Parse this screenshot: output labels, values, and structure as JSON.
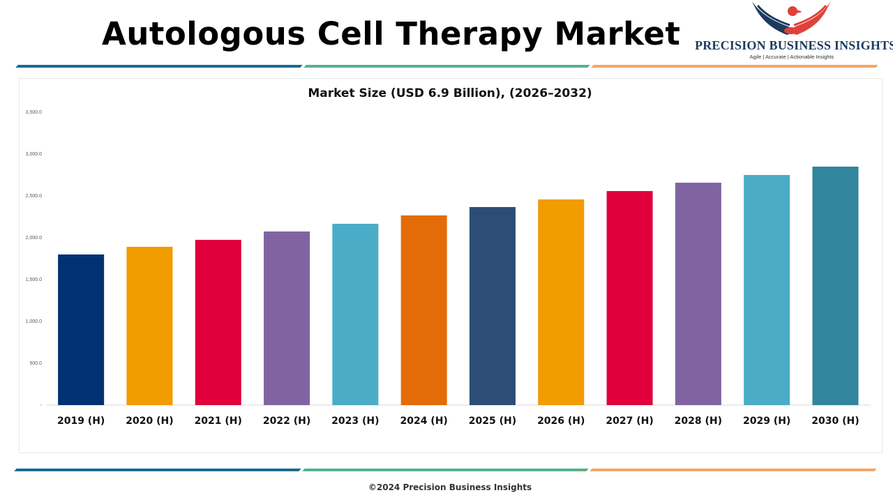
{
  "header": {
    "title": "Autologous Cell Therapy Market"
  },
  "logo": {
    "name": "PRECISION BUSINESS INSIGHTS",
    "tagline": "Agile | Accurate | Actionable Insights",
    "icon": "eagle-handshake-icon"
  },
  "colors": {
    "stripe_blue": "#1b6a93",
    "stripe_green": "#58b08a",
    "stripe_orange": "#f0a865"
  },
  "footer": {
    "copyright": "©2024 Precision Business Insights"
  },
  "chart_data": {
    "type": "bar",
    "title": "Market Size (USD 6.9 Billion), (2026–2032)",
    "xlabel": "",
    "ylabel": "",
    "ylim": [
      0,
      3500
    ],
    "yticks": [
      0,
      500,
      1000,
      1500,
      2000,
      2500,
      3000,
      3500
    ],
    "ytick_labels": [
      "-",
      "500.0",
      "1,000.0",
      "1,500.0",
      "2,000.0",
      "2,500.0",
      "3,000.0",
      "3,500.0"
    ],
    "grid": false,
    "legend": "none",
    "categories": [
      "2019 (H)",
      "2020 (H)",
      "2021 (H)",
      "2022 (H)",
      "2023 (H)",
      "2024 (H)",
      "2025 (H)",
      "2026 (H)",
      "2027 (H)",
      "2028 (H)",
      "2029 (H)",
      "2030 (H)"
    ],
    "values": [
      1800,
      1892,
      1975,
      2075,
      2167,
      2267,
      2367,
      2458,
      2558,
      2658,
      2750,
      2850
    ],
    "bar_colors": [
      "#003273",
      "#f19c00",
      "#e1003c",
      "#8064a2",
      "#4aacc6",
      "#e36c09",
      "#2c4d75",
      "#f19c00",
      "#e1003c",
      "#8064a2",
      "#4aacc6",
      "#31859c"
    ]
  }
}
